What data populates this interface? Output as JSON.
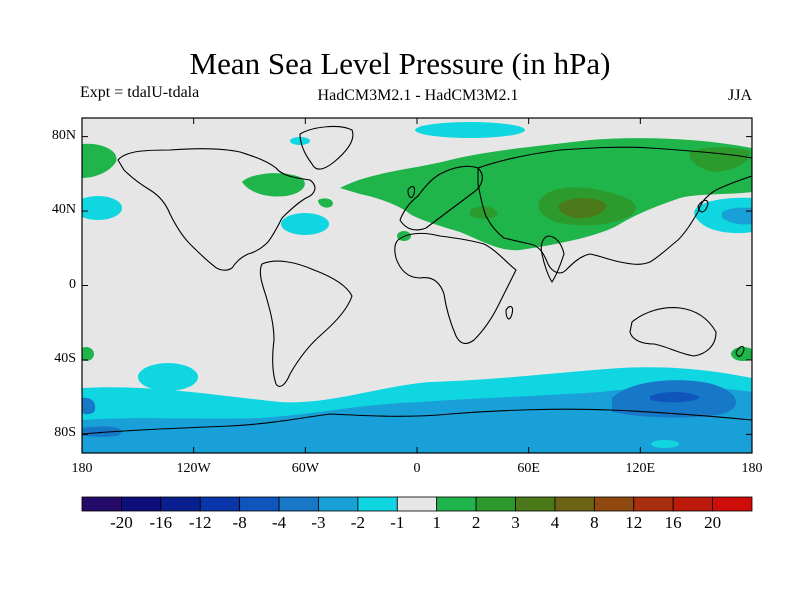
{
  "title": "Mean Sea Level Pressure (in hPa)",
  "experiment": "Expt = tdalU-tdala",
  "model_comparison": "HadCM3M2.1 - HadCM3M2.1",
  "season": "JJA",
  "lat_ticks": [
    {
      "label": "80N",
      "value": 80
    },
    {
      "label": "40N",
      "value": 40
    },
    {
      "label": "0",
      "value": 0
    },
    {
      "label": "40S",
      "value": -40
    },
    {
      "label": "80S",
      "value": -80
    }
  ],
  "lon_ticks": [
    {
      "label": "180",
      "value": -180
    },
    {
      "label": "120W",
      "value": -120
    },
    {
      "label": "60W",
      "value": -60
    },
    {
      "label": "0",
      "value": 0
    },
    {
      "label": "60E",
      "value": 60
    },
    {
      "label": "120E",
      "value": 120
    },
    {
      "label": "180",
      "value": 180
    }
  ],
  "colorbar": {
    "colors": [
      "#240a6b",
      "#0c0e7a",
      "#0a1f8f",
      "#0a35a8",
      "#0f55bc",
      "#1778c8",
      "#1aa0d8",
      "#10d6e2",
      "#e6e6e6",
      "#1fb54a",
      "#2c9a2c",
      "#4c7a1a",
      "#6e6214",
      "#8e4810",
      "#a8300e",
      "#bc1a0a",
      "#d00c0a"
    ],
    "labels": [
      "-20",
      "-16",
      "-12",
      "-8",
      "-4",
      "-3",
      "-2",
      "-1",
      "1",
      "2",
      "3",
      "4",
      "8",
      "12",
      "16",
      "20"
    ]
  },
  "colors": {
    "background_field": "#e6e6e6",
    "neg_1_2": "#10d6e2",
    "neg_2_3": "#1aa0d8",
    "neg_3_4": "#1778c8",
    "neg_4_8": "#0f55bc",
    "pos_1_2": "#1fb54a",
    "pos_2_3": "#2c9a2c",
    "pos_3_4": "#4c7a1a"
  }
}
